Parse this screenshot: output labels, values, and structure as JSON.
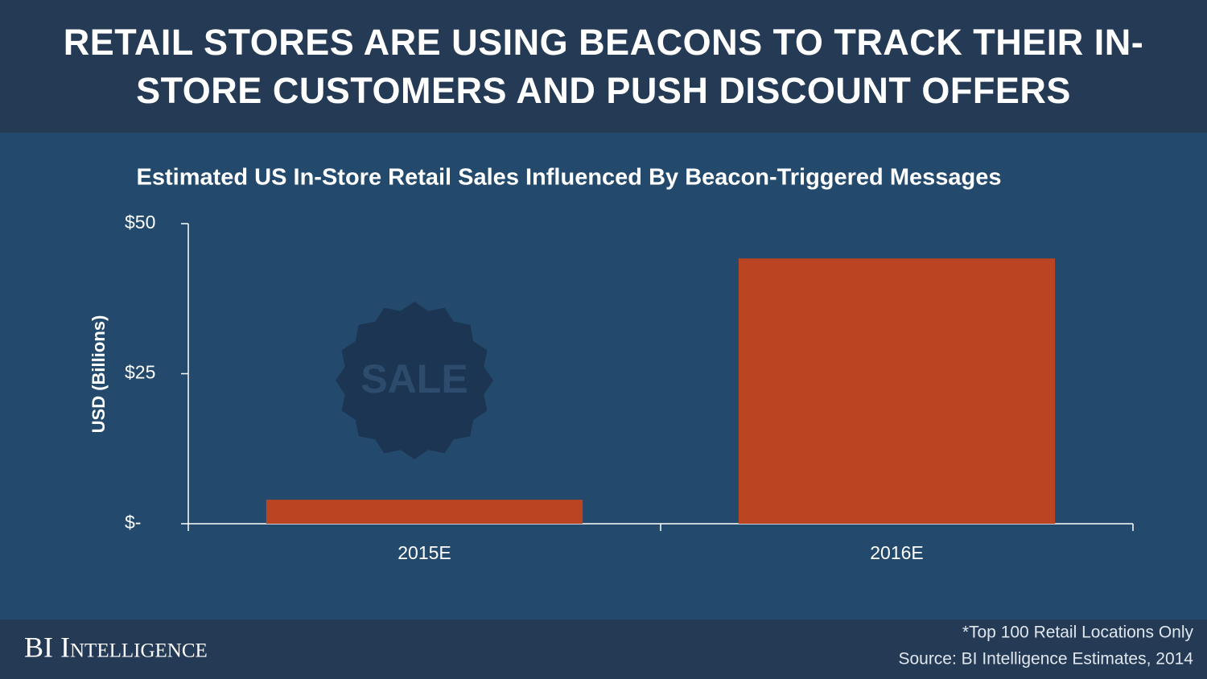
{
  "header": {
    "title": "RETAIL STORES ARE USING BEACONS TO TRACK THEIR IN-STORE CUSTOMERS AND PUSH DISCOUNT OFFERS"
  },
  "chart_data": {
    "type": "bar",
    "title": "Estimated US In-Store Retail Sales Influenced By Beacon-Triggered Messages",
    "y_label": "USD (Billions)",
    "badge_text": "SALE",
    "categories": [
      "2015E",
      "2016E"
    ],
    "values": [
      4,
      44.2
    ],
    "color": "#bb4422",
    "ylim": [
      0,
      50
    ],
    "yticks": [
      {
        "value": 0,
        "label": "$-"
      },
      {
        "value": 25,
        "label": "$25"
      },
      {
        "value": 50,
        "label": "$50"
      }
    ]
  },
  "footer": {
    "brand": "BI Intelligence",
    "note": "*Top 100 Retail Locations Only",
    "source": "Source: BI Intelligence Estimates, 2014"
  }
}
